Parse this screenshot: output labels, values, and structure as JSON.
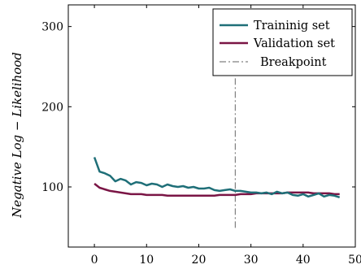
{
  "chart_data": {
    "type": "line",
    "xlabel": "",
    "ylabel": "Negative Log − Likelihood",
    "xlim": [
      -5,
      50
    ],
    "ylim": [
      25,
      327
    ],
    "xticks": [
      0,
      10,
      20,
      30,
      40,
      50
    ],
    "yticks": [
      100,
      200,
      300
    ],
    "legend_position": "top-right",
    "grid": false,
    "series": [
      {
        "name": "Traininig set",
        "color": "#1f6f78",
        "x": [
          0,
          1,
          2,
          3,
          4,
          5,
          6,
          7,
          8,
          9,
          10,
          11,
          12,
          13,
          14,
          15,
          16,
          17,
          18,
          19,
          20,
          21,
          22,
          23,
          24,
          25,
          26,
          27,
          28,
          29,
          30,
          31,
          32,
          33,
          34,
          35,
          36,
          37,
          38,
          39,
          40,
          41,
          42,
          43,
          44,
          45,
          46,
          47
        ],
        "y": [
          137,
          119,
          117,
          114,
          107,
          110,
          108,
          103,
          106,
          105,
          102,
          104,
          103,
          100,
          103,
          101,
          100,
          101,
          99,
          100,
          98,
          98,
          99,
          96,
          95,
          96,
          97,
          95,
          95,
          94,
          93,
          93,
          92,
          93,
          91,
          94,
          92,
          93,
          90,
          89,
          91,
          88,
          90,
          92,
          88,
          90,
          89,
          87
        ]
      },
      {
        "name": "Validation set",
        "color": "#7a1545",
        "x": [
          0,
          1,
          2,
          3,
          4,
          5,
          6,
          7,
          8,
          9,
          10,
          11,
          12,
          13,
          14,
          15,
          16,
          17,
          18,
          19,
          20,
          21,
          22,
          23,
          24,
          25,
          26,
          27,
          28,
          29,
          30,
          31,
          32,
          33,
          34,
          35,
          36,
          37,
          38,
          39,
          40,
          41,
          42,
          43,
          44,
          45,
          46,
          47
        ],
        "y": [
          104,
          99,
          97,
          95,
          94,
          93,
          92,
          91,
          91,
          91,
          90,
          90,
          90,
          90,
          89,
          89,
          89,
          89,
          89,
          89,
          89,
          89,
          89,
          89,
          90,
          90,
          90,
          90,
          91,
          91,
          91,
          92,
          92,
          92,
          92,
          92,
          92,
          93,
          93,
          93,
          93,
          93,
          92,
          92,
          92,
          92,
          91,
          91
        ]
      }
    ],
    "breakpoint": {
      "name": "Breakpoint",
      "x": 27,
      "y_range": [
        49,
        295
      ],
      "color": "#808080"
    }
  }
}
